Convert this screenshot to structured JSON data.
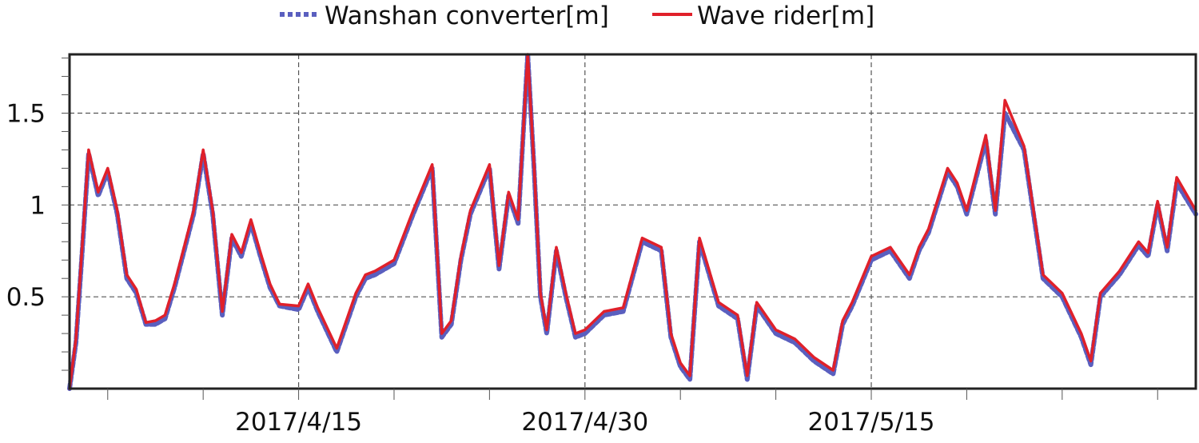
{
  "chart_data": {
    "type": "line",
    "title": "",
    "xlabel": "",
    "ylabel": "",
    "x_ticks": [
      "2017/4/15",
      "2017/4/30",
      "2017/5/15"
    ],
    "y_ticks": [
      "0.5",
      "1",
      "1.5"
    ],
    "ylim": [
      0,
      1.82
    ],
    "xlim": [
      "2017/4/3",
      "2017/6/1"
    ],
    "grid": true,
    "legend_position": "top",
    "series": [
      {
        "name": "Wanshan converter[m]",
        "color": "#5a5fbf",
        "style": "dashed",
        "x": [
          "2017/4/3",
          "2017/4/3",
          "2017/4/3",
          "2017/4/4",
          "2017/4/4",
          "2017/4/5",
          "2017/4/5",
          "2017/4/6",
          "2017/4/6",
          "2017/4/7",
          "2017/4/7",
          "2017/4/8",
          "2017/4/8",
          "2017/4/9",
          "2017/4/9",
          "2017/4/10",
          "2017/4/10",
          "2017/4/11",
          "2017/4/11",
          "2017/4/12",
          "2017/4/12",
          "2017/4/13",
          "2017/4/13",
          "2017/4/14",
          "2017/4/15",
          "2017/4/15",
          "2017/4/16",
          "2017/4/17",
          "2017/4/18",
          "2017/4/18",
          "2017/4/19",
          "2017/4/20",
          "2017/4/21",
          "2017/4/22",
          "2017/4/22",
          "2017/4/23",
          "2017/4/23",
          "2017/4/24",
          "2017/4/25",
          "2017/4/25",
          "2017/4/26",
          "2017/4/26",
          "2017/4/27",
          "2017/4/27",
          "2017/4/27",
          "2017/4/28",
          "2017/4/28",
          "2017/4/29",
          "2017/4/29",
          "2017/4/30",
          "2017/5/1",
          "2017/5/2",
          "2017/5/3",
          "2017/5/4",
          "2017/5/4",
          "2017/5/5",
          "2017/5/5",
          "2017/5/6",
          "2017/5/7",
          "2017/5/8",
          "2017/5/8",
          "2017/5/9",
          "2017/5/10",
          "2017/5/11",
          "2017/5/12",
          "2017/5/13",
          "2017/5/13",
          "2017/5/14",
          "2017/5/15",
          "2017/5/16",
          "2017/5/17",
          "2017/5/17",
          "2017/5/18",
          "2017/5/19",
          "2017/5/19",
          "2017/5/20",
          "2017/5/21",
          "2017/5/21",
          "2017/5/22",
          "2017/5/23",
          "2017/5/24",
          "2017/5/25",
          "2017/5/26",
          "2017/5/26",
          "2017/5/27",
          "2017/5/28",
          "2017/5/29",
          "2017/5/29",
          "2017/5/30",
          "2017/5/30",
          "2017/5/31",
          "2017/6/1"
        ],
        "y": [
          0.0,
          0.25,
          0.75,
          1.28,
          1.05,
          1.18,
          0.95,
          0.6,
          0.52,
          0.35,
          0.35,
          0.38,
          0.55,
          0.75,
          0.95,
          1.28,
          0.95,
          0.4,
          0.82,
          0.72,
          0.9,
          0.72,
          0.55,
          0.45,
          0.43,
          0.55,
          0.42,
          0.2,
          0.5,
          0.6,
          0.62,
          0.68,
          0.95,
          1.2,
          0.28,
          0.35,
          0.7,
          0.95,
          1.2,
          0.65,
          1.05,
          0.9,
          1.82,
          1.2,
          0.5,
          0.3,
          0.75,
          0.5,
          0.28,
          0.3,
          0.4,
          0.42,
          0.8,
          0.75,
          0.28,
          0.12,
          0.05,
          0.8,
          0.45,
          0.38,
          0.05,
          0.45,
          0.3,
          0.25,
          0.15,
          0.08,
          0.35,
          0.45,
          0.7,
          0.75,
          0.6,
          0.75,
          0.85,
          1.18,
          1.1,
          0.95,
          1.35,
          0.95,
          1.5,
          1.3,
          0.6,
          0.5,
          0.28,
          0.13,
          0.5,
          0.62,
          0.78,
          0.72,
          1.0,
          0.75,
          1.12,
          0.95
        ]
      },
      {
        "name": "Wave rider[m]",
        "color": "#e0202a",
        "style": "solid",
        "x": [
          "2017/4/3",
          "2017/4/3",
          "2017/4/3",
          "2017/4/4",
          "2017/4/4",
          "2017/4/5",
          "2017/4/5",
          "2017/4/6",
          "2017/4/6",
          "2017/4/7",
          "2017/4/7",
          "2017/4/8",
          "2017/4/8",
          "2017/4/9",
          "2017/4/9",
          "2017/4/10",
          "2017/4/10",
          "2017/4/11",
          "2017/4/11",
          "2017/4/12",
          "2017/4/12",
          "2017/4/13",
          "2017/4/13",
          "2017/4/14",
          "2017/4/15",
          "2017/4/15",
          "2017/4/16",
          "2017/4/17",
          "2017/4/18",
          "2017/4/18",
          "2017/4/19",
          "2017/4/20",
          "2017/4/21",
          "2017/4/22",
          "2017/4/22",
          "2017/4/23",
          "2017/4/23",
          "2017/4/24",
          "2017/4/25",
          "2017/4/25",
          "2017/4/26",
          "2017/4/26",
          "2017/4/27",
          "2017/4/27",
          "2017/4/27",
          "2017/4/28",
          "2017/4/28",
          "2017/4/29",
          "2017/4/29",
          "2017/4/30",
          "2017/5/1",
          "2017/5/2",
          "2017/5/3",
          "2017/5/4",
          "2017/5/4",
          "2017/5/5",
          "2017/5/5",
          "2017/5/6",
          "2017/5/7",
          "2017/5/8",
          "2017/5/8",
          "2017/5/9",
          "2017/5/10",
          "2017/5/11",
          "2017/5/12",
          "2017/5/13",
          "2017/5/13",
          "2017/5/14",
          "2017/5/15",
          "2017/5/16",
          "2017/5/17",
          "2017/5/17",
          "2017/5/18",
          "2017/5/19",
          "2017/5/19",
          "2017/5/20",
          "2017/5/21",
          "2017/5/21",
          "2017/5/22",
          "2017/5/23",
          "2017/5/24",
          "2017/5/25",
          "2017/5/26",
          "2017/5/26",
          "2017/5/27",
          "2017/5/28",
          "2017/5/29",
          "2017/5/29",
          "2017/5/30",
          "2017/5/30",
          "2017/5/31",
          "2017/6/1"
        ],
        "y": [
          0.0,
          0.27,
          0.78,
          1.3,
          1.07,
          1.2,
          0.97,
          0.62,
          0.54,
          0.36,
          0.37,
          0.4,
          0.57,
          0.77,
          0.97,
          1.3,
          0.97,
          0.42,
          0.84,
          0.74,
          0.92,
          0.74,
          0.57,
          0.46,
          0.45,
          0.57,
          0.44,
          0.22,
          0.52,
          0.62,
          0.64,
          0.7,
          0.97,
          1.22,
          0.3,
          0.37,
          0.72,
          0.97,
          1.22,
          0.67,
          1.07,
          0.92,
          1.82,
          1.22,
          0.52,
          0.32,
          0.77,
          0.52,
          0.3,
          0.32,
          0.42,
          0.44,
          0.82,
          0.77,
          0.3,
          0.14,
          0.07,
          0.82,
          0.47,
          0.4,
          0.07,
          0.47,
          0.32,
          0.27,
          0.17,
          0.1,
          0.37,
          0.47,
          0.72,
          0.77,
          0.62,
          0.77,
          0.87,
          1.2,
          1.12,
          0.97,
          1.38,
          0.97,
          1.57,
          1.32,
          0.62,
          0.52,
          0.3,
          0.15,
          0.52,
          0.64,
          0.8,
          0.74,
          1.02,
          0.77,
          1.15,
          0.97
        ]
      }
    ]
  }
}
